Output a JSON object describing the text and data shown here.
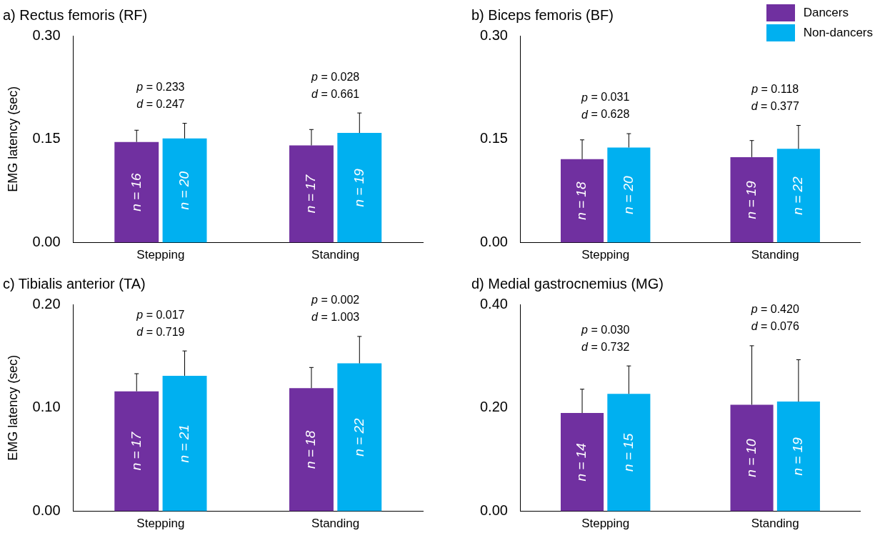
{
  "chart_data": [
    {
      "type": "bar",
      "title": "a) Rectus femoris (RF)",
      "ylabel": "EMG latency (sec)",
      "categories": [
        "Stepping",
        "Standing"
      ],
      "ylim": [
        0,
        0.3
      ],
      "yticks": [
        {
          "value": 0,
          "label": "0.00"
        },
        {
          "value": 0.15,
          "label": "0.15"
        },
        {
          "value": 0.3,
          "label": "0.30"
        }
      ],
      "grid": false,
      "legend": false,
      "series": [
        {
          "color": "#7030a0",
          "values": [
            0.146,
            0.141
          ],
          "errors": [
            [
              0.146,
              0.163
            ],
            [
              0.141,
              0.164
            ]
          ]
        },
        {
          "color": "#00b0f0",
          "values": [
            0.151,
            0.159
          ],
          "errors": [
            [
              0.151,
              0.173
            ],
            [
              0.159,
              0.188
            ]
          ]
        }
      ],
      "annotations": [
        "p = 0.233",
        "d = 0.247",
        "p = 0.028",
        "d = 0.661",
        "n = 16",
        "n = 20",
        "n = 17",
        "n = 19"
      ]
    },
    {
      "type": "bar",
      "title": "b) Biceps femoris (BF)",
      "categories": [
        "Stepping",
        "Standing"
      ],
      "ylim": [
        0,
        0.3
      ],
      "yticks": [
        {
          "value": 0,
          "label": "0.00"
        },
        {
          "value": 0.15,
          "label": "0.15"
        },
        {
          "value": 0.3,
          "label": "0.30"
        }
      ],
      "grid": false,
      "legend": "top right",
      "series": [
        {
          "name": "Dancers",
          "color": "#7030a0",
          "values": [
            0.121,
            0.124
          ],
          "errors": [
            [
              0.121,
              0.149
            ],
            [
              0.124,
              0.148
            ]
          ]
        },
        {
          "name": "Non-dancers",
          "color": "#00b0f0",
          "values": [
            0.138,
            0.136
          ],
          "errors": [
            [
              0.138,
              0.158
            ],
            [
              0.136,
              0.17
            ]
          ]
        }
      ],
      "annotations": [
        "p = 0.031",
        "d = 0.628",
        "p = 0.118",
        "d = 0.377",
        "n = 18",
        "n = 20",
        "n = 19",
        "n = 22"
      ]
    },
    {
      "type": "bar",
      "title": "c) Tibialis anterior (TA)",
      "ylabel": "EMG latency (sec)",
      "categories": [
        "Stepping",
        "Standing"
      ],
      "ylim": [
        0,
        0.2
      ],
      "yticks": [
        {
          "value": 0,
          "label": "0.00"
        },
        {
          "value": 0.1,
          "label": "0.10"
        },
        {
          "value": 0.2,
          "label": "0.20"
        }
      ],
      "grid": false,
      "legend": false,
      "series": [
        {
          "color": "#7030a0",
          "values": [
            0.116,
            0.119
          ],
          "errors": [
            [
              0.116,
              0.133
            ],
            [
              0.119,
              0.139
            ]
          ]
        },
        {
          "color": "#00b0f0",
          "values": [
            0.131,
            0.143
          ],
          "errors": [
            [
              0.131,
              0.155
            ],
            [
              0.143,
              0.169
            ]
          ]
        }
      ],
      "annotations": [
        "p = 0.017",
        "d = 0.719",
        "p = 0.002",
        "d = 1.003",
        "n = 17",
        "n = 21",
        "n = 18",
        "n = 22"
      ]
    },
    {
      "type": "bar",
      "title": "d) Medial gastrocnemius (MG)",
      "categories": [
        "Stepping",
        "Standing"
      ],
      "ylim": [
        0,
        0.4
      ],
      "yticks": [
        {
          "value": 0,
          "label": "0.00"
        },
        {
          "value": 0.2,
          "label": "0.20"
        },
        {
          "value": 0.4,
          "label": "0.40"
        }
      ],
      "grid": false,
      "legend": false,
      "series": [
        {
          "color": "#7030a0",
          "values": [
            0.19,
            0.206
          ],
          "errors": [
            [
              0.19,
              0.236
            ],
            [
              0.206,
              0.32
            ]
          ]
        },
        {
          "color": "#00b0f0",
          "values": [
            0.227,
            0.212
          ],
          "errors": [
            [
              0.227,
              0.281
            ],
            [
              0.212,
              0.293
            ]
          ]
        }
      ],
      "annotations": [
        "p = 0.030",
        "d = 0.732",
        "p = 0.420",
        "d = 0.076",
        "n = 14",
        "n = 15",
        "n = 10",
        "n = 19"
      ]
    }
  ]
}
